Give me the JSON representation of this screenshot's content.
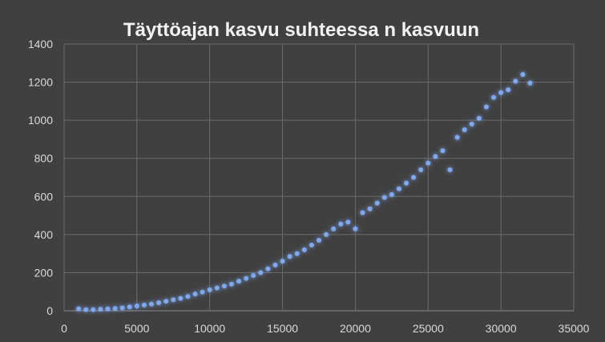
{
  "chart_data": {
    "type": "scatter",
    "title": "Täyttöajan kasvu suhteessa n kasvuun",
    "xlabel": "",
    "ylabel": "",
    "xlim": [
      0,
      35000
    ],
    "ylim": [
      0,
      1400
    ],
    "xticks": [
      0,
      5000,
      10000,
      15000,
      20000,
      25000,
      30000,
      35000
    ],
    "yticks": [
      0,
      200,
      400,
      600,
      800,
      1000,
      1200,
      1400
    ],
    "grid": true,
    "legend": "none",
    "colors": {
      "background": "#404040",
      "marker": "#7fa8ef",
      "marker_glow": "#4472c4",
      "grid": "#6b6b6b",
      "text": "#d9d9d9",
      "title": "#f2f2f2"
    },
    "series": [
      {
        "x": [
          1000,
          1500,
          2000,
          2500,
          3000,
          3500,
          4000,
          4500,
          5000,
          5500,
          6000,
          6500,
          7000,
          7500,
          8000,
          8500,
          9000,
          9500,
          10000,
          10500,
          11000,
          11500,
          12000,
          12500,
          13000,
          13500,
          14000,
          14500,
          15000,
          15500,
          16000,
          16500,
          17000,
          17500,
          18000,
          18500,
          19000,
          19500,
          20000,
          20500,
          21000,
          21500,
          22000,
          22500,
          23000,
          23500,
          24000,
          24500,
          25000,
          25500,
          26000,
          26500,
          27000,
          27500,
          28000,
          28500,
          29000,
          29500,
          30000,
          30500,
          31000,
          31500,
          32000
        ],
        "y": [
          10,
          6,
          6,
          8,
          10,
          12,
          15,
          20,
          25,
          30,
          35,
          42,
          50,
          58,
          65,
          75,
          88,
          98,
          110,
          120,
          130,
          140,
          155,
          170,
          185,
          200,
          220,
          240,
          260,
          285,
          300,
          320,
          345,
          370,
          400,
          430,
          455,
          465,
          430,
          515,
          535,
          565,
          595,
          610,
          640,
          670,
          700,
          740,
          775,
          810,
          840,
          740,
          910,
          950,
          980,
          1010,
          1070,
          1120,
          1145,
          1160,
          1205,
          1240,
          1195
        ]
      }
    ]
  }
}
